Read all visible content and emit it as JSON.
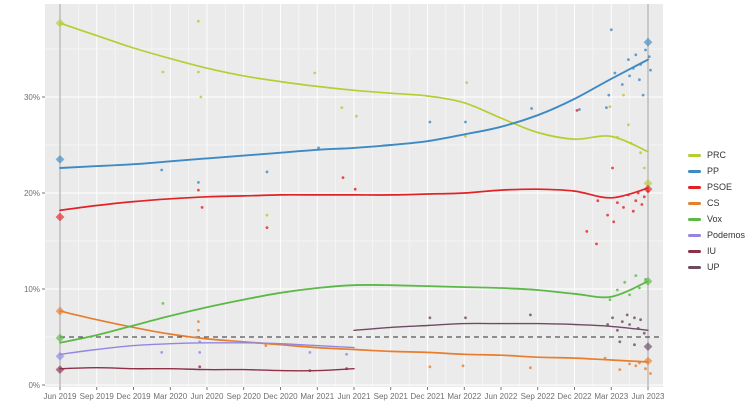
{
  "chart_data": {
    "type": "line",
    "title": "",
    "description": "Opinion polling trends with smoothed party lines, poll scatter dots, election-result diamonds at Jun 2019 and Jun 2023, and a dashed 5% threshold line",
    "x_axis": {
      "tick_labels": [
        "Jun 2019",
        "Sep 2019",
        "Dec 2019",
        "Mar 2020",
        "Jun 2020",
        "Sep 2020",
        "Dec 2020",
        "Mar 2021",
        "Jun 2021",
        "Sep 2021",
        "Dec 2021",
        "Mar 2022",
        "Jun 2022",
        "Sep 2022",
        "Dec 2022",
        "Mar 2023",
        "Jun 2023"
      ],
      "months_per_tick": 3
    },
    "y_axis": {
      "tick_labels": [
        "0%",
        "10%",
        "20%",
        "30%"
      ],
      "tick_values": [
        0,
        10,
        20,
        30
      ],
      "minor_values": [
        5,
        15,
        25,
        35
      ],
      "range": [
        -0.2,
        39.6
      ]
    },
    "threshold": {
      "value": 5,
      "style": "dashed",
      "color": "#2f2f2f"
    },
    "election_lines_months": [
      0,
      48
    ],
    "legend": {
      "position": "right",
      "entries": [
        "PRC",
        "PP",
        "PSOE",
        "CS",
        "Vox",
        "Podemos",
        "IU",
        "UP"
      ]
    },
    "grid": {
      "panel_bg": "#ebebeb",
      "gridline_color": "#ffffff",
      "election_line_color": "#9b9b9b",
      "tick_text_color": "#6f6f6f"
    },
    "series": [
      {
        "name": "PRC",
        "color": "#b8cc33",
        "line_width": 1.7,
        "trend": [
          [
            0,
            37.7
          ],
          [
            3,
            36.4
          ],
          [
            6,
            35.1
          ],
          [
            9,
            34.0
          ],
          [
            12,
            33.0
          ],
          [
            15,
            32.2
          ],
          [
            18,
            31.6
          ],
          [
            21,
            31.1
          ],
          [
            24,
            30.7
          ],
          [
            27,
            30.4
          ],
          [
            30,
            30.1
          ],
          [
            33,
            29.4
          ],
          [
            36,
            27.8
          ],
          [
            39,
            26.3
          ],
          [
            42,
            25.6
          ],
          [
            45,
            25.9
          ],
          [
            48,
            24.3
          ]
        ],
        "elections": [
          [
            0,
            37.7
          ],
          [
            48,
            21.0
          ]
        ],
        "polls": [
          [
            8.4,
            32.6
          ],
          [
            11.3,
            37.9
          ],
          [
            11.3,
            32.6
          ],
          [
            11.5,
            30.0
          ],
          [
            16.9,
            17.7
          ],
          [
            20.8,
            32.5
          ],
          [
            23.0,
            28.9
          ],
          [
            24.2,
            28.0
          ],
          [
            33.1,
            25.9
          ],
          [
            33.2,
            31.5
          ],
          [
            44.9,
            29.0
          ],
          [
            45.5,
            25.8
          ],
          [
            46.0,
            30.2
          ],
          [
            46.4,
            27.1
          ],
          [
            46.6,
            25.2
          ],
          [
            47.4,
            24.2
          ],
          [
            47.7,
            22.6
          ]
        ]
      },
      {
        "name": "PP",
        "color": "#3d8ac4",
        "line_width": 1.9,
        "trend": [
          [
            0,
            22.6
          ],
          [
            3,
            22.8
          ],
          [
            6,
            23.0
          ],
          [
            9,
            23.3
          ],
          [
            12,
            23.6
          ],
          [
            15,
            23.9
          ],
          [
            18,
            24.2
          ],
          [
            21,
            24.5
          ],
          [
            24,
            24.7
          ],
          [
            27,
            25.0
          ],
          [
            30,
            25.4
          ],
          [
            33,
            26.1
          ],
          [
            36,
            26.9
          ],
          [
            39,
            28.1
          ],
          [
            42,
            29.8
          ],
          [
            45,
            31.9
          ],
          [
            48,
            33.9
          ]
        ],
        "elections": [
          [
            0,
            23.5
          ],
          [
            48,
            35.7
          ]
        ],
        "polls": [
          [
            8.3,
            22.4
          ],
          [
            11.3,
            21.1
          ],
          [
            16.9,
            22.2
          ],
          [
            21.1,
            24.7
          ],
          [
            30.2,
            27.4
          ],
          [
            33.1,
            27.4
          ],
          [
            38.5,
            28.8
          ],
          [
            42.4,
            28.7
          ],
          [
            44.6,
            28.9
          ],
          [
            44.8,
            30.2
          ],
          [
            45.0,
            37.0
          ],
          [
            45.3,
            32.5
          ],
          [
            45.9,
            31.3
          ],
          [
            46.4,
            33.9
          ],
          [
            46.5,
            32.2
          ],
          [
            46.8,
            33.0
          ],
          [
            47.0,
            34.4
          ],
          [
            47.3,
            31.8
          ],
          [
            47.4,
            33.4
          ],
          [
            47.6,
            30.2
          ],
          [
            47.8,
            34.9
          ],
          [
            48.1,
            34.2
          ],
          [
            48.2,
            32.8
          ]
        ]
      },
      {
        "name": "PSOE",
        "color": "#e32227",
        "line_width": 1.7,
        "trend": [
          [
            0,
            18.2
          ],
          [
            3,
            18.7
          ],
          [
            6,
            19.1
          ],
          [
            9,
            19.4
          ],
          [
            12,
            19.6
          ],
          [
            15,
            19.7
          ],
          [
            18,
            19.8
          ],
          [
            21,
            19.8
          ],
          [
            24,
            19.8
          ],
          [
            27,
            19.8
          ],
          [
            30,
            19.9
          ],
          [
            33,
            20.0
          ],
          [
            36,
            20.3
          ],
          [
            39,
            20.4
          ],
          [
            42,
            20.2
          ],
          [
            45,
            19.5
          ],
          [
            48,
            20.5
          ]
        ],
        "elections": [
          [
            0,
            17.5
          ],
          [
            48,
            20.4
          ]
        ],
        "polls": [
          [
            11.3,
            20.3
          ],
          [
            11.6,
            18.5
          ],
          [
            16.9,
            16.4
          ],
          [
            23.1,
            21.6
          ],
          [
            24.1,
            20.4
          ],
          [
            42.2,
            28.6
          ],
          [
            43.0,
            16.0
          ],
          [
            43.8,
            14.7
          ],
          [
            43.9,
            19.2
          ],
          [
            44.7,
            17.7
          ],
          [
            45.1,
            22.6
          ],
          [
            45.2,
            17.0
          ],
          [
            45.5,
            19.0
          ],
          [
            46.0,
            18.5
          ],
          [
            46.4,
            19.8
          ],
          [
            46.8,
            18.1
          ],
          [
            47.0,
            19.2
          ],
          [
            47.2,
            20.0
          ],
          [
            47.5,
            18.8
          ],
          [
            47.7,
            19.6
          ],
          [
            48.0,
            20.2
          ]
        ]
      },
      {
        "name": "CS",
        "color": "#e87e2d",
        "line_width": 1.7,
        "trend": [
          [
            0,
            7.7
          ],
          [
            3,
            6.8
          ],
          [
            6,
            6.0
          ],
          [
            9,
            5.3
          ],
          [
            12,
            4.8
          ],
          [
            15,
            4.5
          ],
          [
            18,
            4.2
          ],
          [
            21,
            3.9
          ],
          [
            24,
            3.7
          ],
          [
            27,
            3.5
          ],
          [
            30,
            3.4
          ],
          [
            33,
            3.2
          ],
          [
            36,
            3.1
          ],
          [
            39,
            2.9
          ],
          [
            42,
            2.8
          ],
          [
            45,
            2.6
          ],
          [
            48,
            2.4
          ]
        ],
        "elections": [
          [
            0,
            7.7
          ],
          [
            48,
            2.5
          ]
        ],
        "polls": [
          [
            11.3,
            5.7
          ],
          [
            11.3,
            6.6
          ],
          [
            16.8,
            4.1
          ],
          [
            30.2,
            1.9
          ],
          [
            32.9,
            2.0
          ],
          [
            38.4,
            1.8
          ],
          [
            44.5,
            2.8
          ],
          [
            45.7,
            1.6
          ],
          [
            46.5,
            2.2
          ],
          [
            47.0,
            2.0
          ],
          [
            47.3,
            2.3
          ],
          [
            47.8,
            1.7
          ],
          [
            48.2,
            1.2
          ]
        ]
      },
      {
        "name": "Vox",
        "color": "#5cb947",
        "line_width": 1.8,
        "trend": [
          [
            0,
            4.4
          ],
          [
            3,
            5.2
          ],
          [
            6,
            6.2
          ],
          [
            9,
            7.2
          ],
          [
            12,
            8.1
          ],
          [
            15,
            8.9
          ],
          [
            18,
            9.6
          ],
          [
            21,
            10.1
          ],
          [
            24,
            10.4
          ],
          [
            27,
            10.4
          ],
          [
            30,
            10.3
          ],
          [
            33,
            10.2
          ],
          [
            36,
            10.1
          ],
          [
            39,
            9.9
          ],
          [
            42,
            9.5
          ],
          [
            45,
            9.2
          ],
          [
            48,
            10.8
          ]
        ],
        "elections": [
          [
            0,
            4.9
          ],
          [
            48,
            10.8
          ]
        ],
        "polls": [
          [
            8.4,
            8.5
          ],
          [
            44.9,
            8.9
          ],
          [
            45.5,
            9.9
          ],
          [
            46.1,
            10.7
          ],
          [
            46.5,
            9.4
          ],
          [
            47.0,
            11.4
          ],
          [
            47.3,
            10.1
          ],
          [
            47.8,
            11.0
          ]
        ]
      },
      {
        "name": "Podemos",
        "color": "#9187e2",
        "line_width": 1.4,
        "trend": [
          [
            0,
            3.2
          ],
          [
            3,
            3.7
          ],
          [
            6,
            4.1
          ],
          [
            9,
            4.3
          ],
          [
            12,
            4.4
          ],
          [
            15,
            4.4
          ],
          [
            18,
            4.3
          ],
          [
            21,
            4.1
          ],
          [
            24,
            3.9
          ]
        ],
        "elections": [
          [
            0,
            3.0
          ]
        ],
        "polls": [
          [
            8.3,
            3.4
          ],
          [
            11.4,
            4.5
          ],
          [
            11.4,
            3.4
          ],
          [
            20.4,
            3.4
          ],
          [
            23.4,
            3.2
          ]
        ]
      },
      {
        "name": "IU",
        "color": "#8e3048",
        "line_width": 1.4,
        "trend": [
          [
            0,
            1.7
          ],
          [
            3,
            1.8
          ],
          [
            6,
            1.7
          ],
          [
            9,
            1.7
          ],
          [
            12,
            1.6
          ],
          [
            15,
            1.6
          ],
          [
            18,
            1.5
          ],
          [
            21,
            1.5
          ],
          [
            24,
            1.7
          ]
        ],
        "elections": [
          [
            0,
            1.6
          ]
        ],
        "polls": [
          [
            11.4,
            1.9
          ],
          [
            20.4,
            1.5
          ],
          [
            23.4,
            1.7
          ]
        ]
      },
      {
        "name": "UP",
        "color": "#6d4b63",
        "line_width": 1.4,
        "trend": [
          [
            24,
            5.7
          ],
          [
            27,
            6.0
          ],
          [
            30,
            6.2
          ],
          [
            33,
            6.4
          ],
          [
            36,
            6.4
          ],
          [
            39,
            6.4
          ],
          [
            42,
            6.3
          ],
          [
            45,
            6.1
          ],
          [
            48,
            5.7
          ]
        ],
        "elections": [
          [
            48,
            4.0
          ]
        ],
        "polls": [
          [
            30.2,
            7.0
          ],
          [
            33.1,
            7.0
          ],
          [
            38.4,
            7.3
          ],
          [
            44.7,
            6.3
          ],
          [
            45.1,
            7.0
          ],
          [
            45.5,
            5.7
          ],
          [
            45.7,
            4.5
          ],
          [
            45.9,
            6.6
          ],
          [
            46.3,
            7.3
          ],
          [
            46.5,
            6.3
          ],
          [
            46.9,
            7.0
          ],
          [
            46.9,
            4.2
          ],
          [
            47.2,
            5.9
          ],
          [
            47.4,
            6.8
          ],
          [
            47.7,
            5.4
          ]
        ]
      }
    ]
  }
}
